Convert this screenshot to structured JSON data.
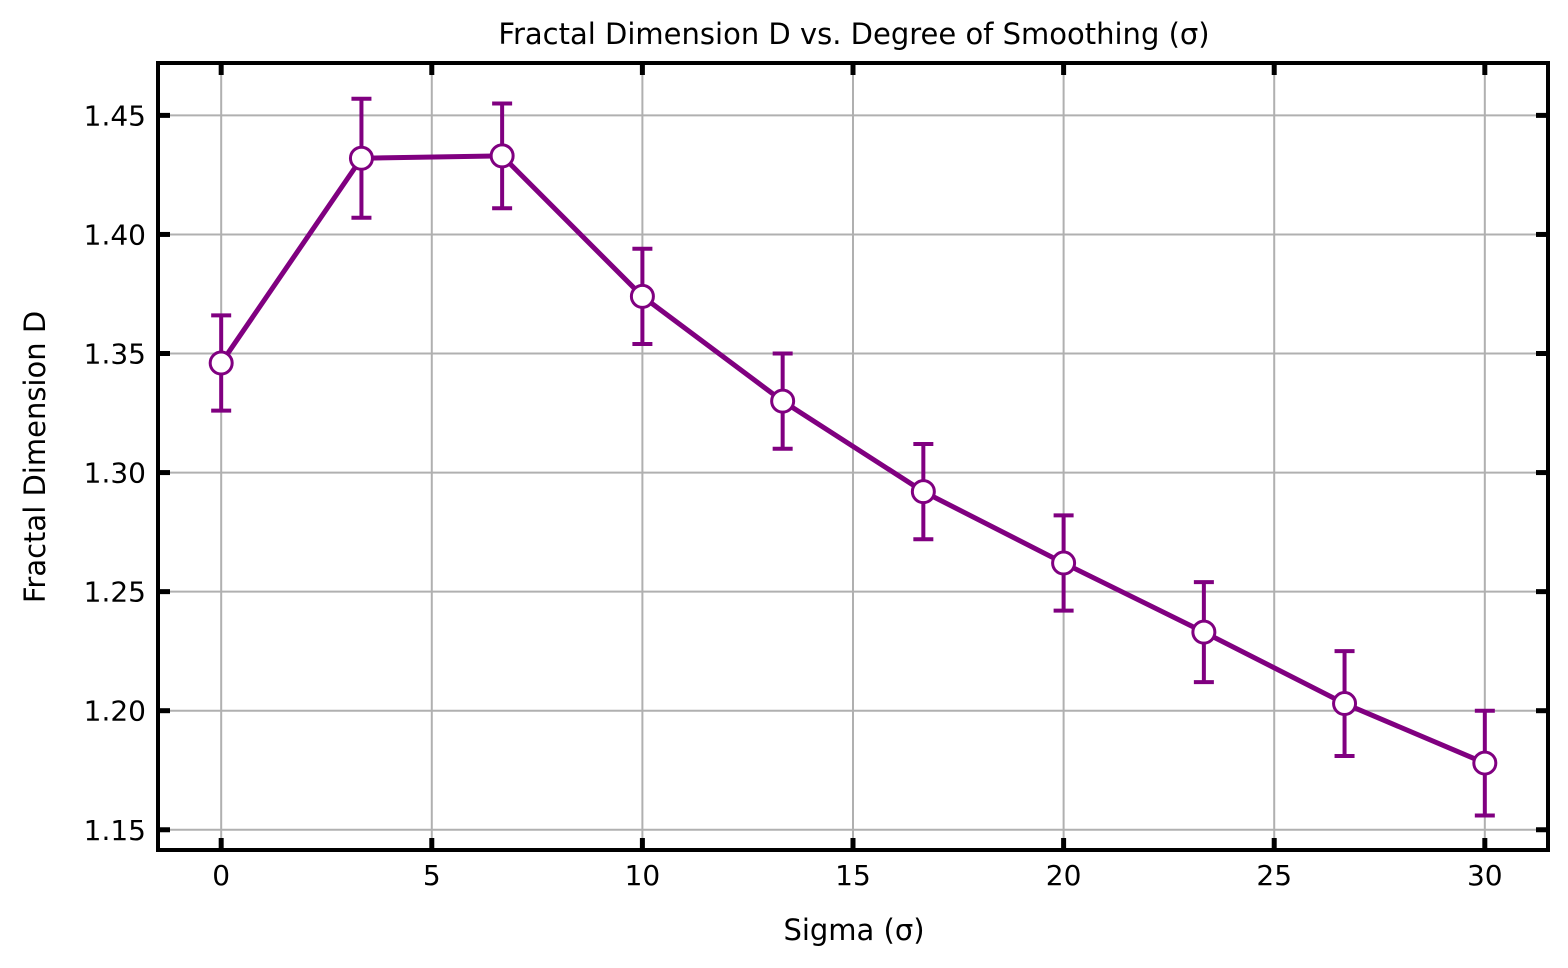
{
  "chart_data": {
    "type": "line",
    "title": "Fractal Dimension D vs. Degree of Smoothing (σ)",
    "xlabel": "Sigma (σ)",
    "ylabel": "Fractal Dimension D",
    "xlim": [
      -1.5,
      31.5
    ],
    "ylim": [
      1.1415,
      1.472
    ],
    "xticks": [
      0,
      5,
      10,
      15,
      20,
      25,
      30
    ],
    "xtick_labels": [
      "0",
      "5",
      "10",
      "15",
      "20",
      "25",
      "30"
    ],
    "yticks": [
      1.15,
      1.2,
      1.25,
      1.3,
      1.35,
      1.4,
      1.45
    ],
    "ytick_labels": [
      "1.15",
      "1.20",
      "1.25",
      "1.30",
      "1.35",
      "1.40",
      "1.45"
    ],
    "grid": true,
    "series": [
      {
        "color": "#800080",
        "marker": "open-circle",
        "x": [
          0,
          3.33,
          6.67,
          10,
          13.33,
          16.67,
          20,
          23.33,
          26.67,
          30
        ],
        "y": [
          1.346,
          1.432,
          1.433,
          1.374,
          1.33,
          1.292,
          1.262,
          1.233,
          1.203,
          1.178
        ],
        "err": [
          0.02,
          0.025,
          0.022,
          0.02,
          0.02,
          0.02,
          0.02,
          0.021,
          0.022,
          0.022
        ]
      }
    ]
  }
}
